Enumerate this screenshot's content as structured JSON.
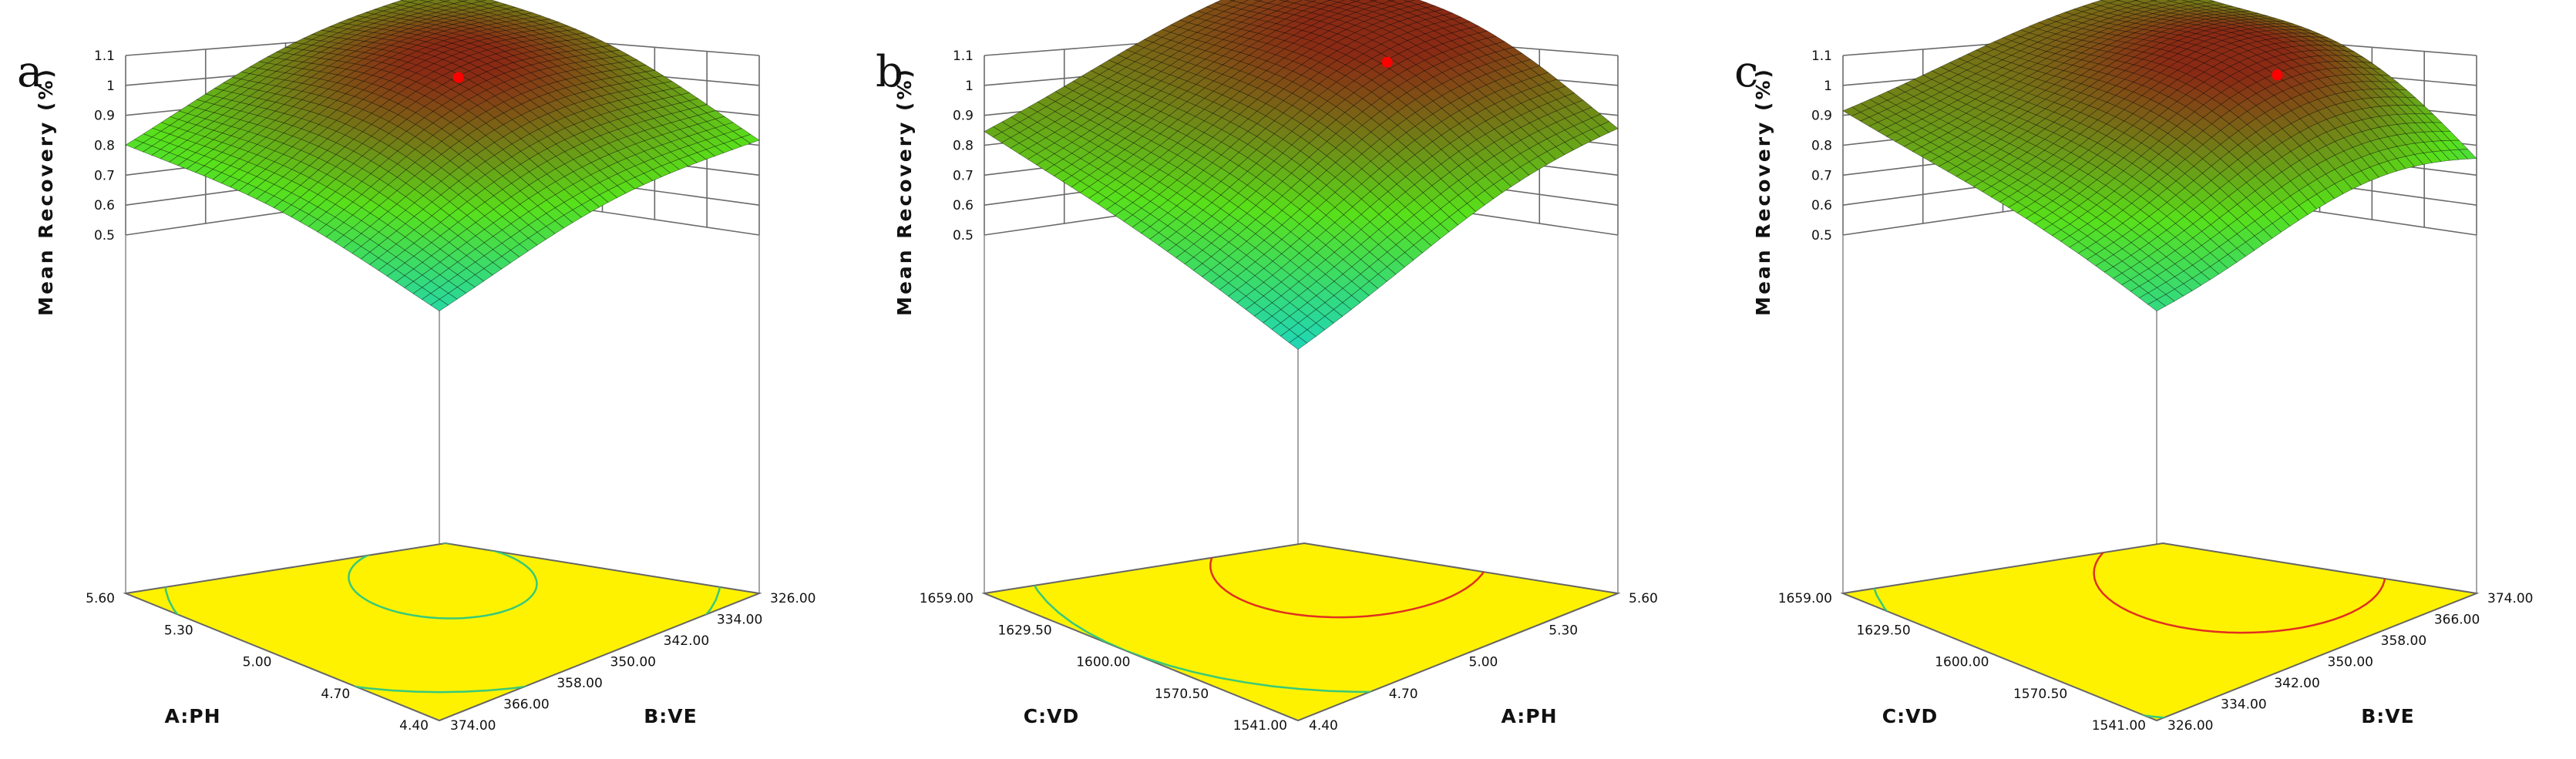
{
  "figure": {
    "panels": [
      "a",
      "b",
      "c"
    ]
  },
  "colors": {
    "floor": "#fff200",
    "surface_low": "#19d6c8",
    "surface_mid": "#58e01a",
    "surface_high": "#8a2a14",
    "optimum_point": "#ff0000",
    "contour_green": "#38c97a",
    "contour_red": "#e03020"
  },
  "chart_data": [
    {
      "type": "surface3d",
      "panel": "a",
      "zlabel": "Mean Recovery (%)",
      "z_ticks": [
        "0.5",
        "0.6",
        "0.7",
        "0.8",
        "0.9",
        "1",
        "1.1"
      ],
      "zlim": [
        0.5,
        1.1
      ],
      "left_axis": {
        "title": "A:PH",
        "ticks": [
          "4.40",
          "4.70",
          "5.00",
          "5.30",
          "5.60"
        ]
      },
      "right_axis": {
        "title": "B:VE",
        "ticks": [
          "374.00",
          "366.00",
          "358.00",
          "350.00",
          "342.00",
          "334.00",
          "326.00"
        ]
      },
      "corners_z": {
        "front": 0.63,
        "left": 0.76,
        "right": 0.76,
        "back": 0.85
      },
      "peak": {
        "u": 0.5,
        "v": 0.55,
        "z": 1.01
      },
      "optimum_z": 1.0,
      "contours": [
        {
          "cx": 0.55,
          "cy": 0.55,
          "rx": 0.22,
          "ry": 0.2,
          "color": "contour_green"
        },
        {
          "cx": 0.55,
          "cy": 0.55,
          "rx": 0.62,
          "ry": 0.62,
          "color": "contour_green"
        }
      ]
    },
    {
      "type": "surface3d",
      "panel": "b",
      "zlabel": "Mean Recovery (%)",
      "z_ticks": [
        "0.5",
        "0.6",
        "0.7",
        "0.8",
        "0.9",
        "1",
        "1.1"
      ],
      "zlim": [
        0.5,
        1.1
      ],
      "left_axis": {
        "title": "C:VD",
        "ticks": [
          "1541.00",
          "1570.50",
          "1600.00",
          "1629.50",
          "1659.00"
        ]
      },
      "right_axis": {
        "title": "A:PH",
        "ticks": [
          "4.40",
          "4.70",
          "5.00",
          "5.30",
          "5.60"
        ]
      },
      "corners_z": {
        "front": 0.52,
        "left": 0.83,
        "right": 0.76,
        "back": 0.9
      },
      "peak": {
        "u": 0.45,
        "v": 0.72,
        "z": 1.02
      },
      "optimum_z": 1.0,
      "contours": [
        {
          "cx": 0.55,
          "cy": 0.7,
          "rx": 0.3,
          "ry": 0.32,
          "color": "contour_red"
        },
        {
          "cx": 0.55,
          "cy": 0.7,
          "rx": 0.75,
          "ry": 0.7,
          "color": "contour_green"
        }
      ]
    },
    {
      "type": "surface3d",
      "panel": "c",
      "zlabel": "Mean Recovery (%)",
      "z_ticks": [
        "0.5",
        "0.6",
        "0.7",
        "0.8",
        "0.9",
        "1",
        "1.1"
      ],
      "zlim": [
        0.5,
        1.1
      ],
      "left_axis": {
        "title": "C:VD",
        "ticks": [
          "1541.00",
          "1570.50",
          "1600.00",
          "1629.50",
          "1659.00"
        ]
      },
      "right_axis": {
        "title": "B:VE",
        "ticks": [
          "326.00",
          "334.00",
          "342.00",
          "350.00",
          "358.00",
          "366.00",
          "374.00"
        ]
      },
      "corners_z": {
        "front": 0.63,
        "left": 0.9,
        "right": 0.58,
        "back": 0.85
      },
      "peak": {
        "u": 0.35,
        "v": 0.72,
        "z": 1.03
      },
      "optimum_z": 1.0,
      "contours": [
        {
          "cx": 0.45,
          "cy": 0.7,
          "rx": 0.33,
          "ry": 0.32,
          "color": "contour_red"
        },
        {
          "cx": 0.45,
          "cy": 0.7,
          "rx": 0.85,
          "ry": 0.8,
          "color": "contour_green"
        }
      ]
    }
  ]
}
